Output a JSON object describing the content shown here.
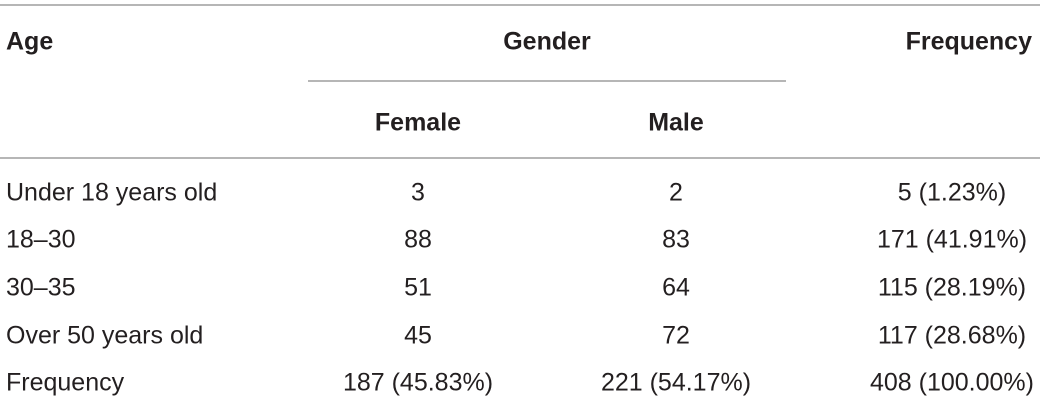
{
  "table": {
    "header": {
      "age": "Age",
      "gender": "Gender",
      "frequency": "Frequency"
    },
    "subheader": [
      "Female",
      "Male"
    ],
    "rows": [
      [
        "Under 18 years old",
        "3",
        "2",
        "5 (1.23%)"
      ],
      [
        "18–30",
        "88",
        "83",
        "171 (41.91%)"
      ],
      [
        "30–35",
        "51",
        "64",
        "115 (28.19%)"
      ],
      [
        "Over 50 years old",
        "45",
        "72",
        "117 (28.68%)"
      ],
      [
        "Frequency",
        "187 (45.83%)",
        "221 (54.17%)",
        "408 (100.00%)"
      ]
    ]
  }
}
